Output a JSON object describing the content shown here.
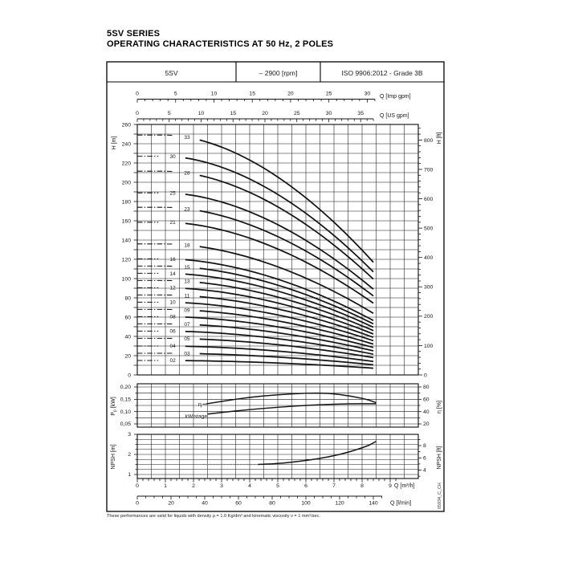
{
  "page": {
    "title_line1": "5SV SERIES",
    "title_line2": "OPERATING CHARACTERISTICS AT 50 Hz, 2 POLES",
    "footnote": "These performances are valid for liquids with density ρ = 1.0 Kg/dm³ and kinematic viscosity ν = 1 mm²/sec.",
    "watermark": "05934_C_CH"
  },
  "header": {
    "model": "5SV",
    "speed": "– 2900 [rpm]",
    "standard": "ISO 9906:2012 - Grade 3B"
  },
  "chart_data": [
    {
      "type": "line",
      "title": "Head vs flow curves per number of stages",
      "x_axes": [
        {
          "id": "imp_gpm",
          "label": "Q [Imp gpm]",
          "tick_labels": [
            0,
            5,
            10,
            15,
            20,
            25,
            30
          ],
          "minor_step": 1
        },
        {
          "id": "us_gpm",
          "label": "Q [US gpm]",
          "tick_labels": [
            0,
            5,
            10,
            15,
            20,
            25,
            30,
            35
          ],
          "minor_step": 1
        },
        {
          "id": "m3h",
          "label": "Q [m³/h]",
          "tick_labels": [
            0,
            1,
            2,
            3,
            4,
            5,
            6,
            7,
            8,
            9
          ],
          "minor_step": 0.2
        },
        {
          "id": "lmin",
          "label": "Q [l/min]",
          "tick_labels": [
            0,
            20,
            40,
            60,
            80,
            100,
            120,
            140
          ],
          "minor_step": 5
        }
      ],
      "y_left": {
        "label": "H [m]",
        "range": [
          0,
          260
        ],
        "tick_labels": [
          0,
          20,
          40,
          60,
          80,
          100,
          120,
          140,
          160,
          180,
          200,
          220,
          240,
          260
        ],
        "minor_step": 10
      },
      "y_right": {
        "label": "H [ft]",
        "tick_labels": [
          0,
          100,
          200,
          300,
          400,
          500,
          600,
          700,
          800
        ],
        "minor_step": 20
      },
      "grid": "on",
      "q_solid_max": 8.4,
      "curves": [
        {
          "label": "33",
          "h0": 249,
          "h_end": 117,
          "label_q": 1.77
        },
        {
          "label": "30",
          "h0": 227,
          "h_end": 107,
          "label_q": 1.26
        },
        {
          "label": "28",
          "h0": 211.5,
          "h_end": 99.5,
          "label_q": 1.77
        },
        {
          "label": "25",
          "h0": 189,
          "h_end": 89,
          "label_q": 1.26
        },
        {
          "label": "23",
          "h0": 174,
          "h_end": 82,
          "label_q": 1.77
        },
        {
          "label": "21",
          "h0": 158.5,
          "h_end": 74.5,
          "label_q": 1.26
        },
        {
          "label": "18",
          "h0": 136,
          "h_end": 64,
          "label_q": 1.77
        },
        {
          "label": "16",
          "h0": 120.5,
          "h_end": 56.5,
          "label_q": 1.26
        },
        {
          "label": "15",
          "h0": 113,
          "h_end": 53,
          "label_q": 1.77
        },
        {
          "label": "14",
          "h0": 105.5,
          "h_end": 49.5,
          "label_q": 1.26
        },
        {
          "label": "13",
          "h0": 98,
          "h_end": 46,
          "label_q": 1.77
        },
        {
          "label": "12",
          "h0": 90.5,
          "h_end": 42.5,
          "label_q": 1.26
        },
        {
          "label": "11",
          "h0": 83,
          "h_end": 39,
          "label_q": 1.77
        },
        {
          "label": "10",
          "h0": 75.5,
          "h_end": 35.5,
          "label_q": 1.26
        },
        {
          "label": "09",
          "h0": 68,
          "h_end": 32,
          "label_q": 1.77
        },
        {
          "label": "08",
          "h0": 60.5,
          "h_end": 28.5,
          "label_q": 1.26
        },
        {
          "label": "07",
          "h0": 53,
          "h_end": 25,
          "label_q": 1.77
        },
        {
          "label": "06",
          "h0": 45.5,
          "h_end": 21.5,
          "label_q": 1.26
        },
        {
          "label": "05",
          "h0": 38,
          "h_end": 18,
          "label_q": 1.77
        },
        {
          "label": "04",
          "h0": 30,
          "h_end": 14,
          "label_q": 1.26
        },
        {
          "label": "03",
          "h0": 22.5,
          "h_end": 10.5,
          "label_q": 1.77
        },
        {
          "label": "02",
          "h0": 15,
          "h_end": 7,
          "label_q": 1.26
        }
      ]
    },
    {
      "type": "line",
      "title": "Power per stage and efficiency",
      "y_left": {
        "label": "Pp [kW]",
        "tick_labels": [
          "0,05",
          "0,10",
          "0,15",
          "0,20"
        ],
        "range": [
          0.05,
          0.2
        ]
      },
      "y_right": {
        "label": "η [%]",
        "tick_labels": [
          20,
          40,
          60,
          80
        ],
        "range": [
          20,
          80
        ]
      },
      "series": [
        {
          "name": "η",
          "axis": "right",
          "points": [
            [
              2.45,
              52.5
            ],
            [
              3,
              56.5
            ],
            [
              3.5,
              60
            ],
            [
              4,
              63
            ],
            [
              4.5,
              65.5
            ],
            [
              5,
              67.3
            ],
            [
              5.5,
              68.8
            ],
            [
              6,
              69.8
            ],
            [
              6.4,
              70.1
            ],
            [
              6.8,
              69.6
            ],
            [
              7.2,
              67.8
            ],
            [
              7.6,
              65
            ],
            [
              8,
              61.5
            ],
            [
              8.25,
              58.5
            ],
            [
              8.5,
              54.5
            ]
          ]
        },
        {
          "name": "kW/stage",
          "axis": "left",
          "points": [
            [
              2.5,
              0.09
            ],
            [
              3,
              0.0965
            ],
            [
              3.5,
              0.1025
            ],
            [
              4,
              0.108
            ],
            [
              4.5,
              0.113
            ],
            [
              5,
              0.1175
            ],
            [
              5.5,
              0.1215
            ],
            [
              6,
              0.125
            ],
            [
              6.5,
              0.128
            ],
            [
              7,
              0.13
            ],
            [
              7.5,
              0.1315
            ],
            [
              8,
              0.132
            ],
            [
              8.5,
              0.132
            ]
          ]
        }
      ]
    },
    {
      "type": "line",
      "title": "NPSH required",
      "y_left": {
        "label": "NPSH [m]",
        "tick_labels": [
          1,
          2,
          3
        ],
        "range": [
          1,
          3
        ]
      },
      "y_right": {
        "label": "NPSH [ft]",
        "tick_labels": [
          4,
          6,
          8
        ]
      },
      "series": [
        {
          "name": "NPSH",
          "lead_points": [
            [
              2.35,
              1.5
            ],
            [
              4.3,
              1.5
            ]
          ],
          "points": [
            [
              4.3,
              1.5
            ],
            [
              4.8,
              1.53
            ],
            [
              5.2,
              1.57
            ],
            [
              5.6,
              1.63
            ],
            [
              6,
              1.7
            ],
            [
              6.4,
              1.78
            ],
            [
              6.8,
              1.88
            ],
            [
              7.2,
              2.0
            ],
            [
              7.6,
              2.15
            ],
            [
              8,
              2.33
            ],
            [
              8.25,
              2.46
            ],
            [
              8.5,
              2.65
            ]
          ]
        }
      ]
    }
  ]
}
